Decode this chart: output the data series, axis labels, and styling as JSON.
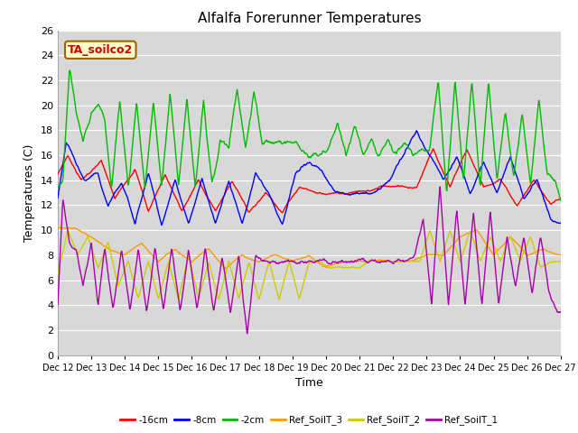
{
  "title": "Alfalfa Forerunner Temperatures",
  "xlabel": "Time",
  "ylabel": "Temperatures (C)",
  "annotation": "TA_soilco2",
  "ylim": [
    0,
    26
  ],
  "background_color": "#ffffff",
  "plot_bg_color": "#d8d8d8",
  "grid_color": "#ffffff",
  "series_colors": {
    "neg16cm": "#ff0000",
    "neg8cm": "#0000ff",
    "neg2cm": "#00bb00",
    "ref3": "#ff9900",
    "ref2": "#cccc00",
    "ref1": "#aa00aa"
  },
  "legend_labels": [
    "-16cm",
    "-8cm",
    "-2cm",
    "Ref_SoilT_3",
    "Ref_SoilT_2",
    "Ref_SoilT_1"
  ],
  "x_tick_labels": [
    "Dec 12",
    "Dec 13",
    "Dec 14",
    "Dec 15",
    "Dec 16",
    "Dec 17",
    "Dec 18",
    "Dec 19",
    "Dec 20",
    "Dec 21",
    "Dec 22",
    "Dec 23",
    "Dec 24",
    "Dec 25",
    "Dec 26",
    "Dec 27"
  ],
  "yticks": [
    0,
    2,
    4,
    6,
    8,
    10,
    12,
    14,
    16,
    18,
    20,
    22,
    24,
    26
  ]
}
